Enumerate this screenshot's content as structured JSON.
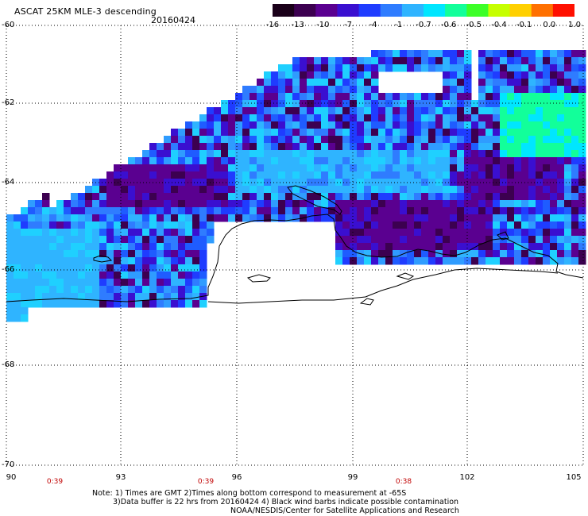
{
  "header": {
    "title": "ASCAT 25KM MLE-3 descending",
    "date": "20160424"
  },
  "colorbar": {
    "labels": [
      "-16",
      "-13",
      "-10",
      "-7",
      "-4",
      "-1",
      "-0.7",
      "-0.6",
      "-0.5",
      "-0.4",
      "-0.1",
      "0.0",
      "1.0"
    ],
    "colors": [
      "#1a0019",
      "#3c0050",
      "#5a0090",
      "#3a0fd0",
      "#1f3cff",
      "#2f7cff",
      "#2fb4ff",
      "#00e6ff",
      "#12ff9a",
      "#3cff28",
      "#c6ff00",
      "#ffd000",
      "#ff7000",
      "#ff1000"
    ]
  },
  "axes": {
    "lat_labels": [
      "-60",
      "-62",
      "-64",
      "-66",
      "-68",
      "-70"
    ],
    "lon_labels": [
      "90",
      "93",
      "96",
      "99",
      "102",
      "105"
    ],
    "times": [
      "0:39",
      "0:39",
      "0:38"
    ]
  },
  "notes": {
    "line1": "Note: 1) Times are GMT 2)Times along bottom correspond to measurement at -65S",
    "line2": "3)Data buffer is 22 hrs from 20160424 4) Black wind barbs indicate possible contamination",
    "line3": "NOAA/NESDIS/Center for Satellite Applications and Research"
  }
}
